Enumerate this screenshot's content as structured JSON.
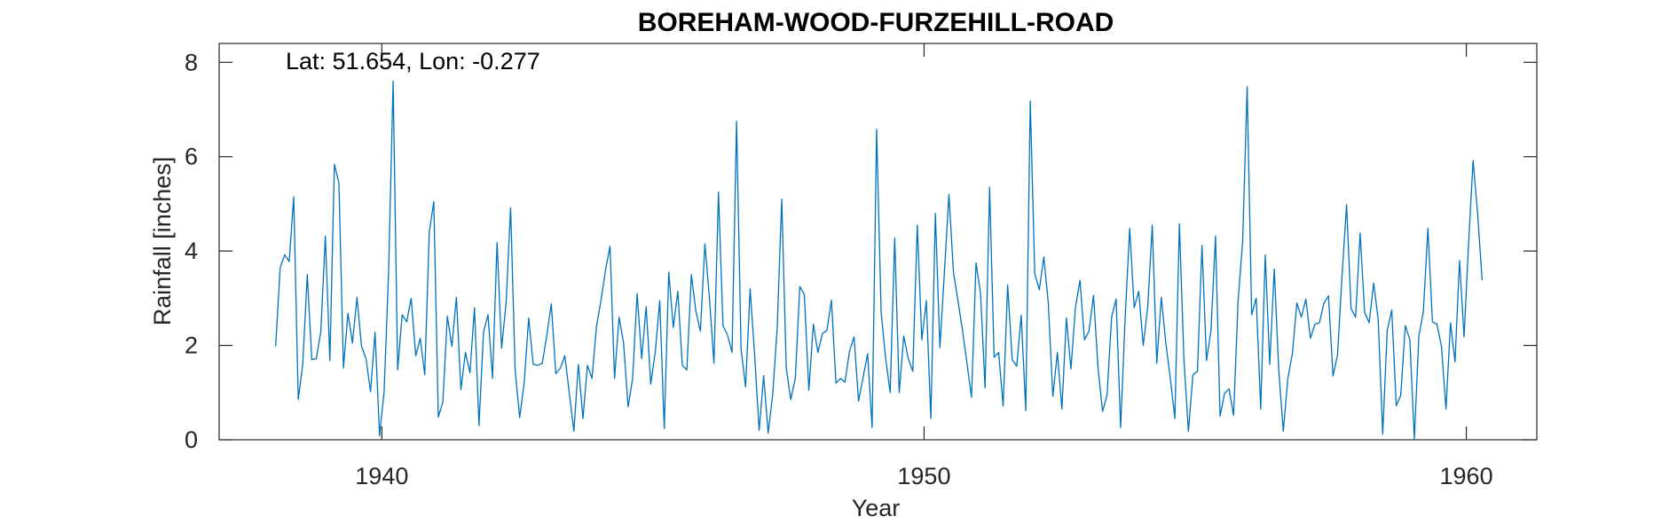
{
  "chart_data": {
    "type": "line",
    "title": "BOREHAM-WOOD-FURZEHILL-ROAD",
    "annotation": "Lat: 51.654, Lon: -0.277",
    "xlabel": "Year",
    "ylabel": "Rainfall [inches]",
    "xlim": [
      1937,
      1961.3
    ],
    "ylim": [
      0,
      8.4
    ],
    "xticks": [
      1940,
      1950,
      1960
    ],
    "yticks": [
      0,
      2,
      4,
      6,
      8
    ],
    "grid": false,
    "colors": {
      "line": "#0072BD",
      "axis": "#262626"
    },
    "series": [
      {
        "x_start": 1938.0417,
        "x_step": 0.083333,
        "values": [
          1.98,
          3.65,
          3.92,
          3.78,
          5.15,
          0.85,
          1.6,
          3.5,
          1.7,
          1.72,
          2.3,
          4.32,
          1.68,
          5.84,
          5.44,
          1.52,
          2.68,
          2.05,
          3.02,
          1.98,
          1.72,
          1.02,
          2.28,
          0.08,
          1.02,
          3.55,
          7.6,
          1.48,
          2.65,
          2.5,
          3.0,
          1.78,
          2.15,
          1.38,
          4.4,
          5.05,
          0.48,
          0.8,
          2.62,
          1.98,
          3.02,
          1.06,
          1.85,
          1.42,
          2.8,
          0.3,
          2.28,
          2.65,
          1.3,
          4.18,
          1.94,
          2.9,
          4.92,
          1.48,
          0.47,
          1.2,
          2.58,
          1.6,
          1.58,
          1.62,
          2.2,
          2.88,
          1.4,
          1.52,
          1.78,
          0.98,
          0.18,
          1.6,
          0.45,
          1.58,
          1.3,
          2.4,
          2.95,
          3.6,
          4.1,
          1.3,
          2.6,
          2.05,
          0.7,
          1.3,
          3.1,
          1.72,
          2.82,
          1.18,
          1.85,
          2.95,
          0.24,
          3.55,
          2.38,
          3.15,
          1.58,
          1.48,
          3.5,
          2.72,
          2.3,
          4.15,
          3.0,
          1.62,
          5.25,
          2.42,
          2.22,
          1.85,
          6.75,
          1.92,
          1.12,
          3.2,
          1.8,
          0.2,
          1.36,
          0.14,
          0.96,
          2.38,
          5.1,
          1.52,
          0.85,
          1.3,
          3.25,
          3.08,
          1.05,
          2.45,
          1.85,
          2.25,
          2.32,
          2.96,
          1.2,
          1.3,
          1.22,
          1.88,
          2.18,
          0.82,
          1.32,
          1.82,
          0.26,
          6.58,
          2.7,
          1.72,
          1.0,
          4.28,
          1.0,
          2.2,
          1.72,
          1.45,
          4.55,
          2.12,
          2.95,
          0.45,
          4.8,
          1.95,
          3.55,
          5.2,
          3.55,
          2.95,
          2.32,
          1.62,
          0.9,
          3.75,
          3.1,
          1.1,
          5.35,
          1.75,
          1.85,
          0.72,
          3.28,
          1.7,
          1.56,
          2.64,
          0.62,
          7.18,
          3.52,
          3.18,
          3.88,
          2.88,
          0.92,
          1.85,
          0.65,
          2.58,
          1.5,
          2.8,
          3.38,
          2.12,
          2.3,
          3.06,
          1.52,
          0.6,
          0.95,
          2.6,
          2.98,
          0.26,
          2.58,
          4.48,
          2.8,
          3.15,
          2.0,
          2.82,
          4.55,
          1.62,
          3.02,
          2.05,
          1.3,
          0.45,
          4.58,
          1.72,
          0.18,
          1.38,
          1.45,
          4.12,
          1.68,
          2.32,
          4.32,
          0.5,
          0.98,
          1.08,
          0.52,
          2.95,
          4.2,
          7.48,
          2.65,
          3.0,
          0.65,
          3.92,
          1.6,
          3.62,
          1.46,
          0.18,
          1.3,
          1.82,
          2.9,
          2.6,
          2.98,
          2.15,
          2.45,
          2.48,
          2.9,
          3.05,
          1.35,
          1.8,
          3.48,
          4.98,
          2.78,
          2.6,
          4.38,
          2.7,
          2.48,
          3.32,
          2.55,
          0.12,
          2.32,
          2.75,
          0.72,
          0.95,
          2.42,
          2.12,
          0.02,
          2.2,
          2.72,
          4.48,
          2.5,
          2.45,
          1.98,
          0.65,
          2.48,
          1.65,
          3.8,
          2.18,
          4.15,
          5.92,
          4.8,
          3.38
        ]
      }
    ]
  }
}
